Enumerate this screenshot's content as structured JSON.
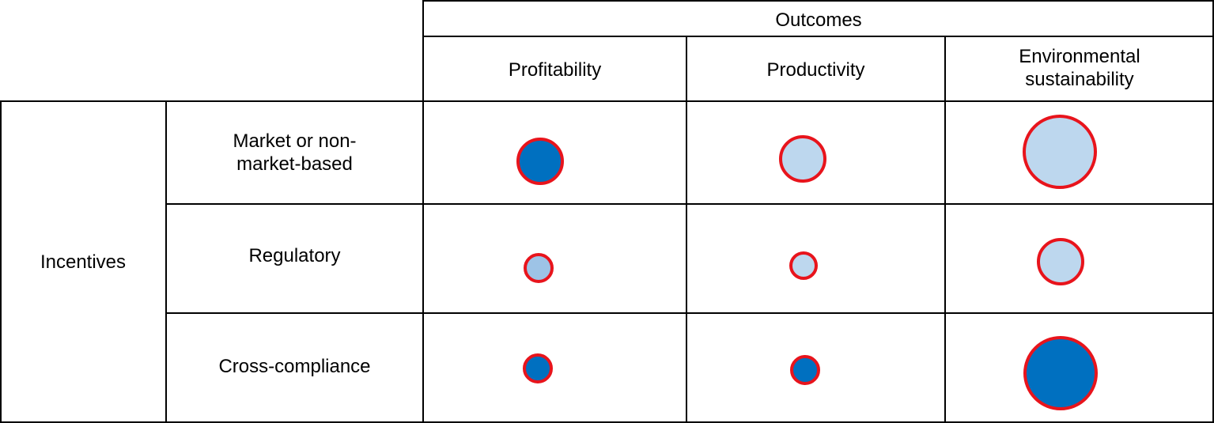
{
  "header": {
    "title": "Outcomes"
  },
  "columns": [
    "Profitability",
    "Productivity",
    "Environmental\nsustainability"
  ],
  "row_group": "Incentives",
  "rows": [
    "Market or non-\nmarket-based",
    "Regulatory",
    "Cross-compliance"
  ]
}
